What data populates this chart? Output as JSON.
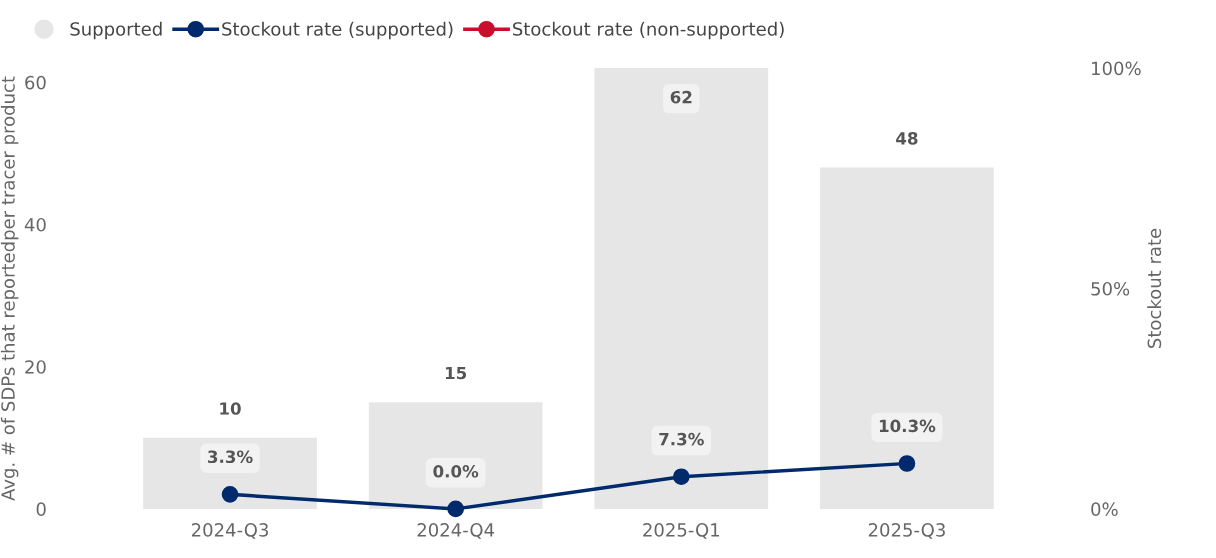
{
  "chart_data": {
    "type": "bar",
    "ylabel": "Avg. # of SDPs that reportedper tracer product",
    "y2label": "Stockout rate",
    "categories": [
      "2024-Q3",
      "2024-Q4",
      "2025-Q1",
      "2025-Q3"
    ],
    "series": [
      {
        "name": "Supported",
        "color": "#e6e6e6",
        "values": [
          10,
          15,
          62,
          48
        ],
        "data_labels": true
      },
      {
        "name": "Stockout rate (supported)",
        "type": "line",
        "axis": "y2",
        "color": "#002a6c",
        "values": [
          3.3,
          0.0,
          7.3,
          10.3
        ],
        "value_labels": [
          "3.3%",
          "0.0%",
          "7.3%",
          "10.3%"
        ],
        "marker": "circle"
      },
      {
        "name": "Stockout rate (non-supported)",
        "type": "line",
        "axis": "y2",
        "color": "#c8102e",
        "values": [
          null,
          null,
          null,
          null
        ],
        "marker": "circle"
      }
    ],
    "ylim": [
      0,
      62
    ],
    "yticks": [
      0,
      20,
      40,
      60
    ],
    "y2lim": [
      0,
      100
    ],
    "y2ticks": [
      {
        "value": 0,
        "label": "0%"
      },
      {
        "value": 50,
        "label": "50%"
      },
      {
        "value": 100,
        "label": "100%"
      }
    ],
    "grid": false,
    "legend": "top left"
  }
}
